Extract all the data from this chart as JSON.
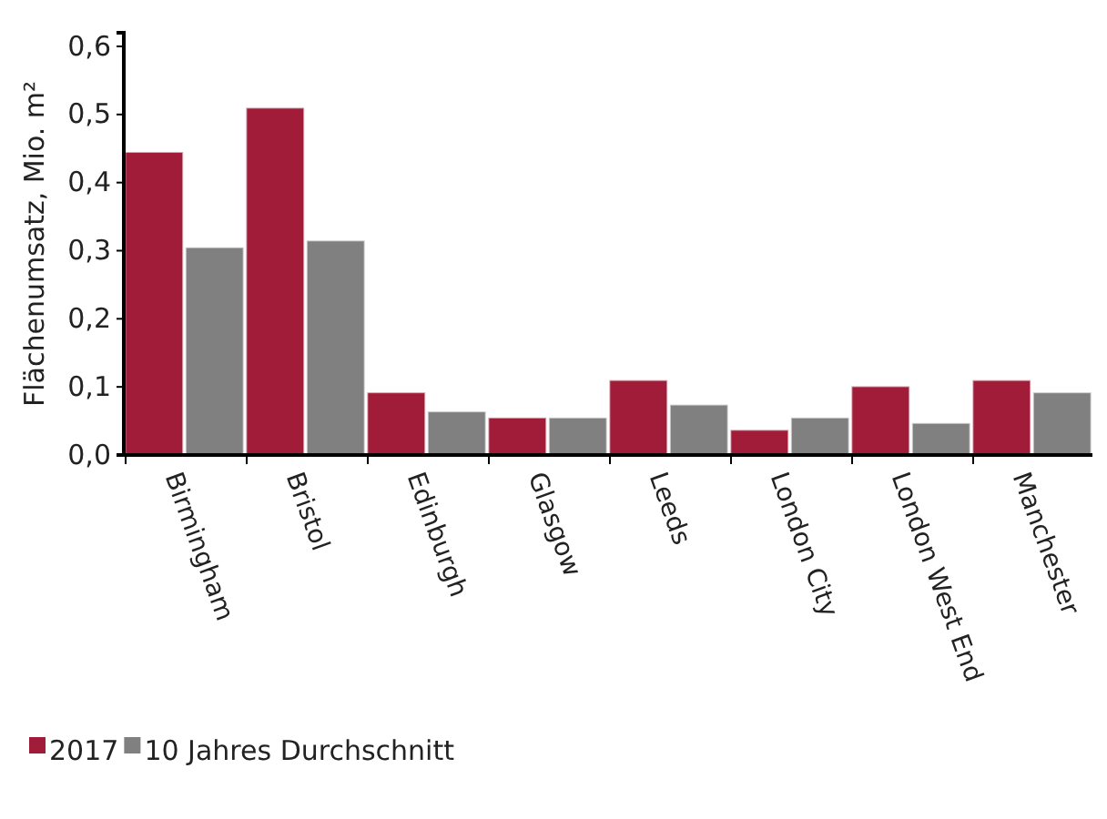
{
  "chart_data": {
    "type": "bar",
    "ylabel": "Flächenumsatz, Mio. m²",
    "categories": [
      "Birmingham",
      "Bristol",
      "Edinburgh",
      "Glasgow",
      "Leeds",
      "London City",
      "London West End",
      "Manchester"
    ],
    "series": [
      {
        "name": "2017",
        "color": "#a01c38",
        "values": [
          0.445,
          0.51,
          0.092,
          0.055,
          0.11,
          0.037,
          0.101,
          0.11
        ]
      },
      {
        "name": "10 Jahres Durchschnitt",
        "color": "#808080",
        "values": [
          0.305,
          0.315,
          0.064,
          0.055,
          0.074,
          0.055,
          0.047,
          0.092
        ]
      }
    ],
    "ylim": [
      0,
      0.62
    ],
    "yticks": [
      {
        "value": 0,
        "label": "0,0"
      },
      {
        "value": 0.1,
        "label": "0,1"
      },
      {
        "value": 0.2,
        "label": "0,2"
      },
      {
        "value": 0.3,
        "label": "0,3"
      },
      {
        "value": 0.4,
        "label": "0,4"
      },
      {
        "value": 0.5,
        "label": "0,5"
      },
      {
        "value": 0.6,
        "label": "0,6"
      }
    ],
    "grid": false,
    "legend": "bottom"
  }
}
